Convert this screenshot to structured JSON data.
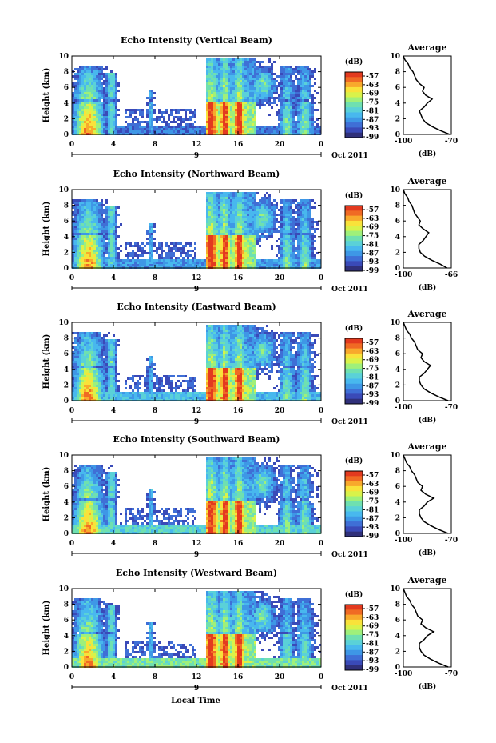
{
  "figure": {
    "xlabel": "Local Time",
    "colors": [
      "#30307a",
      "#3a4ab8",
      "#3f6fd6",
      "#3e97e6",
      "#48b8ee",
      "#5ad1d8",
      "#6fe0b0",
      "#9ff07a",
      "#d9f24a",
      "#f9e23a",
      "#f8a92c",
      "#f06a24",
      "#e33a1f"
    ],
    "avg_title": "Average",
    "avg_xlabel": "(dB)",
    "cbar_label": "(dB)"
  },
  "chart_data": [
    {
      "type": "heatmap",
      "title": "Echo Intensity (Vertical Beam)",
      "ylabel": "Height (km)",
      "xticks": [
        "0",
        "4",
        "8",
        "12",
        "16",
        "20",
        "0"
      ],
      "date_labels": [
        "9",
        "Oct 2011"
      ],
      "xlim": [
        0,
        24
      ],
      "ylim": [
        0,
        10
      ],
      "yticks": [
        "0",
        "2",
        "4",
        "6",
        "8",
        "10"
      ],
      "colorbar": {
        "label": "(dB)",
        "ticks": [
          "-57",
          "-63",
          "-69",
          "-75",
          "-81",
          "-87",
          "-93",
          "-99"
        ]
      },
      "average": {
        "title": "Average",
        "xlabel": "(dB)",
        "xticks": [
          "-100",
          "-70"
        ],
        "yticks": [
          "0",
          "2",
          "4",
          "6",
          "8",
          "10"
        ],
        "profile": [
          [
            0.0,
            -71
          ],
          [
            0.5,
            -77
          ],
          [
            1.0,
            -82
          ],
          [
            1.5,
            -86
          ],
          [
            2.0,
            -88
          ],
          [
            2.5,
            -89
          ],
          [
            3.0,
            -90
          ],
          [
            3.5,
            -87
          ],
          [
            4.0,
            -85
          ],
          [
            4.5,
            -82
          ],
          [
            5.0,
            -86
          ],
          [
            5.5,
            -88
          ],
          [
            6.0,
            -87
          ],
          [
            6.5,
            -90
          ],
          [
            7.0,
            -92
          ],
          [
            7.5,
            -93
          ],
          [
            8.0,
            -94
          ],
          [
            8.5,
            -96
          ],
          [
            9.0,
            -97
          ],
          [
            9.5,
            -99
          ],
          [
            10.0,
            -100
          ]
        ]
      }
    },
    {
      "type": "heatmap",
      "title": "Echo Intensity (Northward Beam)",
      "ylabel": "Height (km)",
      "xticks": [
        "0",
        "4",
        "8",
        "12",
        "16",
        "20",
        "0"
      ],
      "date_labels": [
        "9",
        "Oct 2011"
      ],
      "xlim": [
        0,
        24
      ],
      "ylim": [
        0,
        10
      ],
      "yticks": [
        "0",
        "2",
        "4",
        "6",
        "8",
        "10"
      ],
      "colorbar": {
        "label": "(dB)",
        "ticks": [
          "-57",
          "-63",
          "-69",
          "-75",
          "-81",
          "-87",
          "-93",
          "-99"
        ]
      },
      "average": {
        "title": "Average",
        "xlabel": "(dB)",
        "xticks": [
          "-100",
          "-66"
        ],
        "yticks": [
          "0",
          "2",
          "4",
          "6",
          "8",
          "10"
        ],
        "profile": [
          [
            0.0,
            -69
          ],
          [
            0.5,
            -74
          ],
          [
            1.0,
            -80
          ],
          [
            1.5,
            -85
          ],
          [
            2.0,
            -88
          ],
          [
            2.5,
            -89
          ],
          [
            3.0,
            -89
          ],
          [
            3.5,
            -86
          ],
          [
            4.0,
            -84
          ],
          [
            4.5,
            -82
          ],
          [
            5.0,
            -86
          ],
          [
            5.5,
            -89
          ],
          [
            6.0,
            -88
          ],
          [
            6.5,
            -90
          ],
          [
            7.0,
            -92
          ],
          [
            7.5,
            -93
          ],
          [
            8.0,
            -94
          ],
          [
            8.5,
            -96
          ],
          [
            9.0,
            -97
          ],
          [
            9.5,
            -99
          ],
          [
            10.0,
            -100
          ]
        ]
      }
    },
    {
      "type": "heatmap",
      "title": "Echo Intensity (Eastward Beam)",
      "ylabel": "Height (km)",
      "xticks": [
        "0",
        "4",
        "8",
        "12",
        "16",
        "20",
        "0"
      ],
      "date_labels": [
        "9",
        "Oct 2011"
      ],
      "xlim": [
        0,
        24
      ],
      "ylim": [
        0,
        10
      ],
      "yticks": [
        "0",
        "2",
        "4",
        "6",
        "8",
        "10"
      ],
      "colorbar": {
        "label": "(dB)",
        "ticks": [
          "-57",
          "-63",
          "-69",
          "-75",
          "-81",
          "-87",
          "-93",
          "-99"
        ]
      },
      "average": {
        "title": "Average",
        "xlabel": "(dB)",
        "xticks": [
          "-100",
          "-70"
        ],
        "yticks": [
          "0",
          "2",
          "4",
          "6",
          "8",
          "10"
        ],
        "profile": [
          [
            0.0,
            -72
          ],
          [
            0.5,
            -78
          ],
          [
            1.0,
            -83
          ],
          [
            1.5,
            -87
          ],
          [
            2.0,
            -89
          ],
          [
            2.5,
            -90
          ],
          [
            3.0,
            -90
          ],
          [
            3.5,
            -87
          ],
          [
            4.0,
            -85
          ],
          [
            4.5,
            -83
          ],
          [
            5.0,
            -87
          ],
          [
            5.5,
            -89
          ],
          [
            6.0,
            -88
          ],
          [
            6.5,
            -91
          ],
          [
            7.0,
            -92
          ],
          [
            7.5,
            -93
          ],
          [
            8.0,
            -95
          ],
          [
            8.5,
            -96
          ],
          [
            9.0,
            -98
          ],
          [
            9.5,
            -99
          ],
          [
            10.0,
            -100
          ]
        ]
      }
    },
    {
      "type": "heatmap",
      "title": "Echo Intensity (Southward Beam)",
      "ylabel": "Height (km)",
      "xticks": [
        "0",
        "4",
        "8",
        "12",
        "16",
        "20",
        "0"
      ],
      "date_labels": [
        "9",
        "Oct 2011"
      ],
      "xlim": [
        0,
        24
      ],
      "ylim": [
        0,
        10
      ],
      "yticks": [
        "0",
        "2",
        "4",
        "6",
        "8",
        "10"
      ],
      "colorbar": {
        "label": "(dB)",
        "ticks": [
          "-57",
          "-63",
          "-69",
          "-75",
          "-81",
          "-87",
          "-93",
          "-99"
        ]
      },
      "average": {
        "title": "Average",
        "xlabel": "(dB)",
        "xticks": [
          "-100",
          "-70"
        ],
        "yticks": [
          "0",
          "2",
          "4",
          "6",
          "8",
          "10"
        ],
        "profile": [
          [
            0.0,
            -72
          ],
          [
            0.5,
            -78
          ],
          [
            1.0,
            -83
          ],
          [
            1.5,
            -87
          ],
          [
            2.0,
            -89
          ],
          [
            2.5,
            -90
          ],
          [
            3.0,
            -90
          ],
          [
            3.5,
            -87
          ],
          [
            4.0,
            -85
          ],
          [
            4.5,
            -81
          ],
          [
            5.0,
            -86
          ],
          [
            5.5,
            -89
          ],
          [
            6.0,
            -88
          ],
          [
            6.5,
            -91
          ],
          [
            7.0,
            -92
          ],
          [
            7.5,
            -93
          ],
          [
            8.0,
            -95
          ],
          [
            8.5,
            -96
          ],
          [
            9.0,
            -98
          ],
          [
            9.5,
            -99
          ],
          [
            10.0,
            -100
          ]
        ]
      }
    },
    {
      "type": "heatmap",
      "title": "Echo Intensity (Westward Beam)",
      "ylabel": "Height (km)",
      "xticks": [
        "0",
        "4",
        "8",
        "12",
        "16",
        "20",
        "0"
      ],
      "date_labels": [
        "9",
        "Oct 2011"
      ],
      "xlim": [
        0,
        24
      ],
      "ylim": [
        0,
        10
      ],
      "yticks": [
        "0",
        "2",
        "4",
        "6",
        "8",
        "10"
      ],
      "colorbar": {
        "label": "(dB)",
        "ticks": [
          "-57",
          "-63",
          "-69",
          "-75",
          "-81",
          "-87",
          "-93",
          "-99"
        ]
      },
      "average": {
        "title": "Average",
        "xlabel": "(dB)",
        "xticks": [
          "-100",
          "-70"
        ],
        "yticks": [
          "0",
          "2",
          "4",
          "6",
          "8",
          "10"
        ],
        "profile": [
          [
            0.0,
            -72
          ],
          [
            0.5,
            -78
          ],
          [
            1.0,
            -83
          ],
          [
            1.5,
            -87
          ],
          [
            2.0,
            -89
          ],
          [
            2.5,
            -90
          ],
          [
            3.0,
            -90
          ],
          [
            3.5,
            -87
          ],
          [
            4.0,
            -85
          ],
          [
            4.5,
            -81
          ],
          [
            5.0,
            -86
          ],
          [
            5.5,
            -89
          ],
          [
            6.0,
            -88
          ],
          [
            6.5,
            -91
          ],
          [
            7.0,
            -92
          ],
          [
            7.5,
            -93
          ],
          [
            8.0,
            -95
          ],
          [
            8.5,
            -96
          ],
          [
            9.0,
            -98
          ],
          [
            9.5,
            -99
          ],
          [
            10.0,
            -100
          ]
        ]
      }
    }
  ]
}
